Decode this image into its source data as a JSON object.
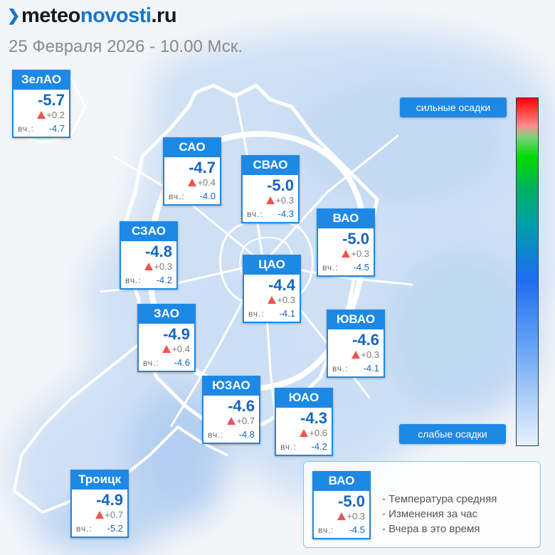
{
  "header": {
    "logo_dark": "meteo",
    "logo_blue": "novosti",
    "logo_tld": ".ru",
    "date": "25 Февраля 2026 - 10.00 Мск."
  },
  "districts": [
    {
      "id": "zelao",
      "name": "ЗелАО",
      "temp": "-5.7",
      "change": "+0.2",
      "yesterday_label": "вч.:",
      "yesterday": "-4.7"
    },
    {
      "id": "sao",
      "name": "САО",
      "temp": "-4.7",
      "change": "+0.4",
      "yesterday_label": "вч.:",
      "yesterday": "-4.0"
    },
    {
      "id": "svao",
      "name": "СВАО",
      "temp": "-5.0",
      "change": "+0.3",
      "yesterday_label": "вч.:",
      "yesterday": "-4.3"
    },
    {
      "id": "vao",
      "name": "ВАО",
      "temp": "-5.0",
      "change": "+0.3",
      "yesterday_label": "вч.:",
      "yesterday": "-4.5"
    },
    {
      "id": "szao",
      "name": "СЗАО",
      "temp": "-4.8",
      "change": "+0.3",
      "yesterday_label": "вч.:",
      "yesterday": "-4.2"
    },
    {
      "id": "cao",
      "name": "ЦАО",
      "temp": "-4.4",
      "change": "+0.3",
      "yesterday_label": "вч.:",
      "yesterday": "-4.1"
    },
    {
      "id": "zao",
      "name": "ЗАО",
      "temp": "-4.9",
      "change": "+0.4",
      "yesterday_label": "вч.:",
      "yesterday": "-4.6"
    },
    {
      "id": "yuvao",
      "name": "ЮВАО",
      "temp": "-4.6",
      "change": "+0.3",
      "yesterday_label": "вч.:",
      "yesterday": "-4.1"
    },
    {
      "id": "yuzao",
      "name": "ЮЗАО",
      "temp": "-4.6",
      "change": "+0.7",
      "yesterday_label": "вч.:",
      "yesterday": "-4.8"
    },
    {
      "id": "yuao",
      "name": "ЮАО",
      "temp": "-4.3",
      "change": "+0.6",
      "yesterday_label": "вч.:",
      "yesterday": "-4.2"
    },
    {
      "id": "troitsk",
      "name": "Троицк",
      "temp": "-4.9",
      "change": "+0.7",
      "yesterday_label": "вч.:",
      "yesterday": "-5.2"
    }
  ],
  "scale": {
    "top_label": "сильные осадки",
    "bottom_label": "слабые осадки"
  },
  "legend": {
    "sample": {
      "name": "ВАО",
      "temp": "-5.0",
      "change": "+0.3",
      "yesterday_label": "вч.:",
      "yesterday": "-4.5"
    },
    "items": [
      "- Температура средняя",
      "- Изменения за час",
      "- Вчера в это время"
    ]
  },
  "colors": {
    "accent": "#1e88e5",
    "temp_text": "#1565c0",
    "rise_arrow": "#ef5350",
    "precip_light": "#c9ddf5"
  }
}
